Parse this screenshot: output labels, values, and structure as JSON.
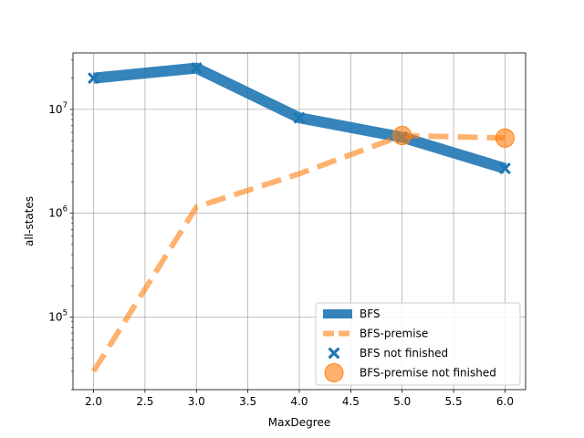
{
  "chart_data": {
    "type": "line",
    "title": "",
    "xlabel": "MaxDegree",
    "ylabel": "all-states",
    "yscale": "log",
    "xlim": [
      1.8,
      6.2
    ],
    "ylim": [
      20000,
      35000000
    ],
    "x_ticks": [
      "2.0",
      "2.5",
      "3.0",
      "3.5",
      "4.0",
      "4.5",
      "5.0",
      "5.5",
      "6.0"
    ],
    "x_tick_values": [
      2.0,
      2.5,
      3.0,
      3.5,
      4.0,
      4.5,
      5.0,
      5.5,
      6.0
    ],
    "y_ticks": [
      {
        "value": 100000,
        "base": "10",
        "exp": "5"
      },
      {
        "value": 1000000,
        "base": "10",
        "exp": "6"
      },
      {
        "value": 10000000,
        "base": "10",
        "exp": "7"
      }
    ],
    "grid": true,
    "legend_position": "lower-right",
    "series": [
      {
        "name": "BFS",
        "style": "solid",
        "color": "#1f77b4",
        "x": [
          2,
          3,
          4,
          5,
          6
        ],
        "y": [
          20000000,
          25000000,
          8300000,
          5400000,
          2700000
        ]
      },
      {
        "name": "BFS-premise",
        "style": "dashed",
        "color": "#ff7f0e",
        "x": [
          2,
          3,
          4,
          5,
          6
        ],
        "y": [
          30000,
          1150000,
          2400000,
          5600000,
          5300000
        ]
      }
    ],
    "markers": [
      {
        "name": "BFS  not finished",
        "marker": "X",
        "color": "#1f77b4",
        "x": [
          2,
          3,
          4,
          5,
          6
        ],
        "y": [
          20000000,
          25000000,
          8300000,
          5400000,
          2700000
        ]
      },
      {
        "name": "BFS-premise not finished",
        "marker": "circle",
        "color": "#ff7f0e",
        "x": [
          5,
          6
        ],
        "y": [
          5600000,
          5300000
        ]
      }
    ]
  }
}
